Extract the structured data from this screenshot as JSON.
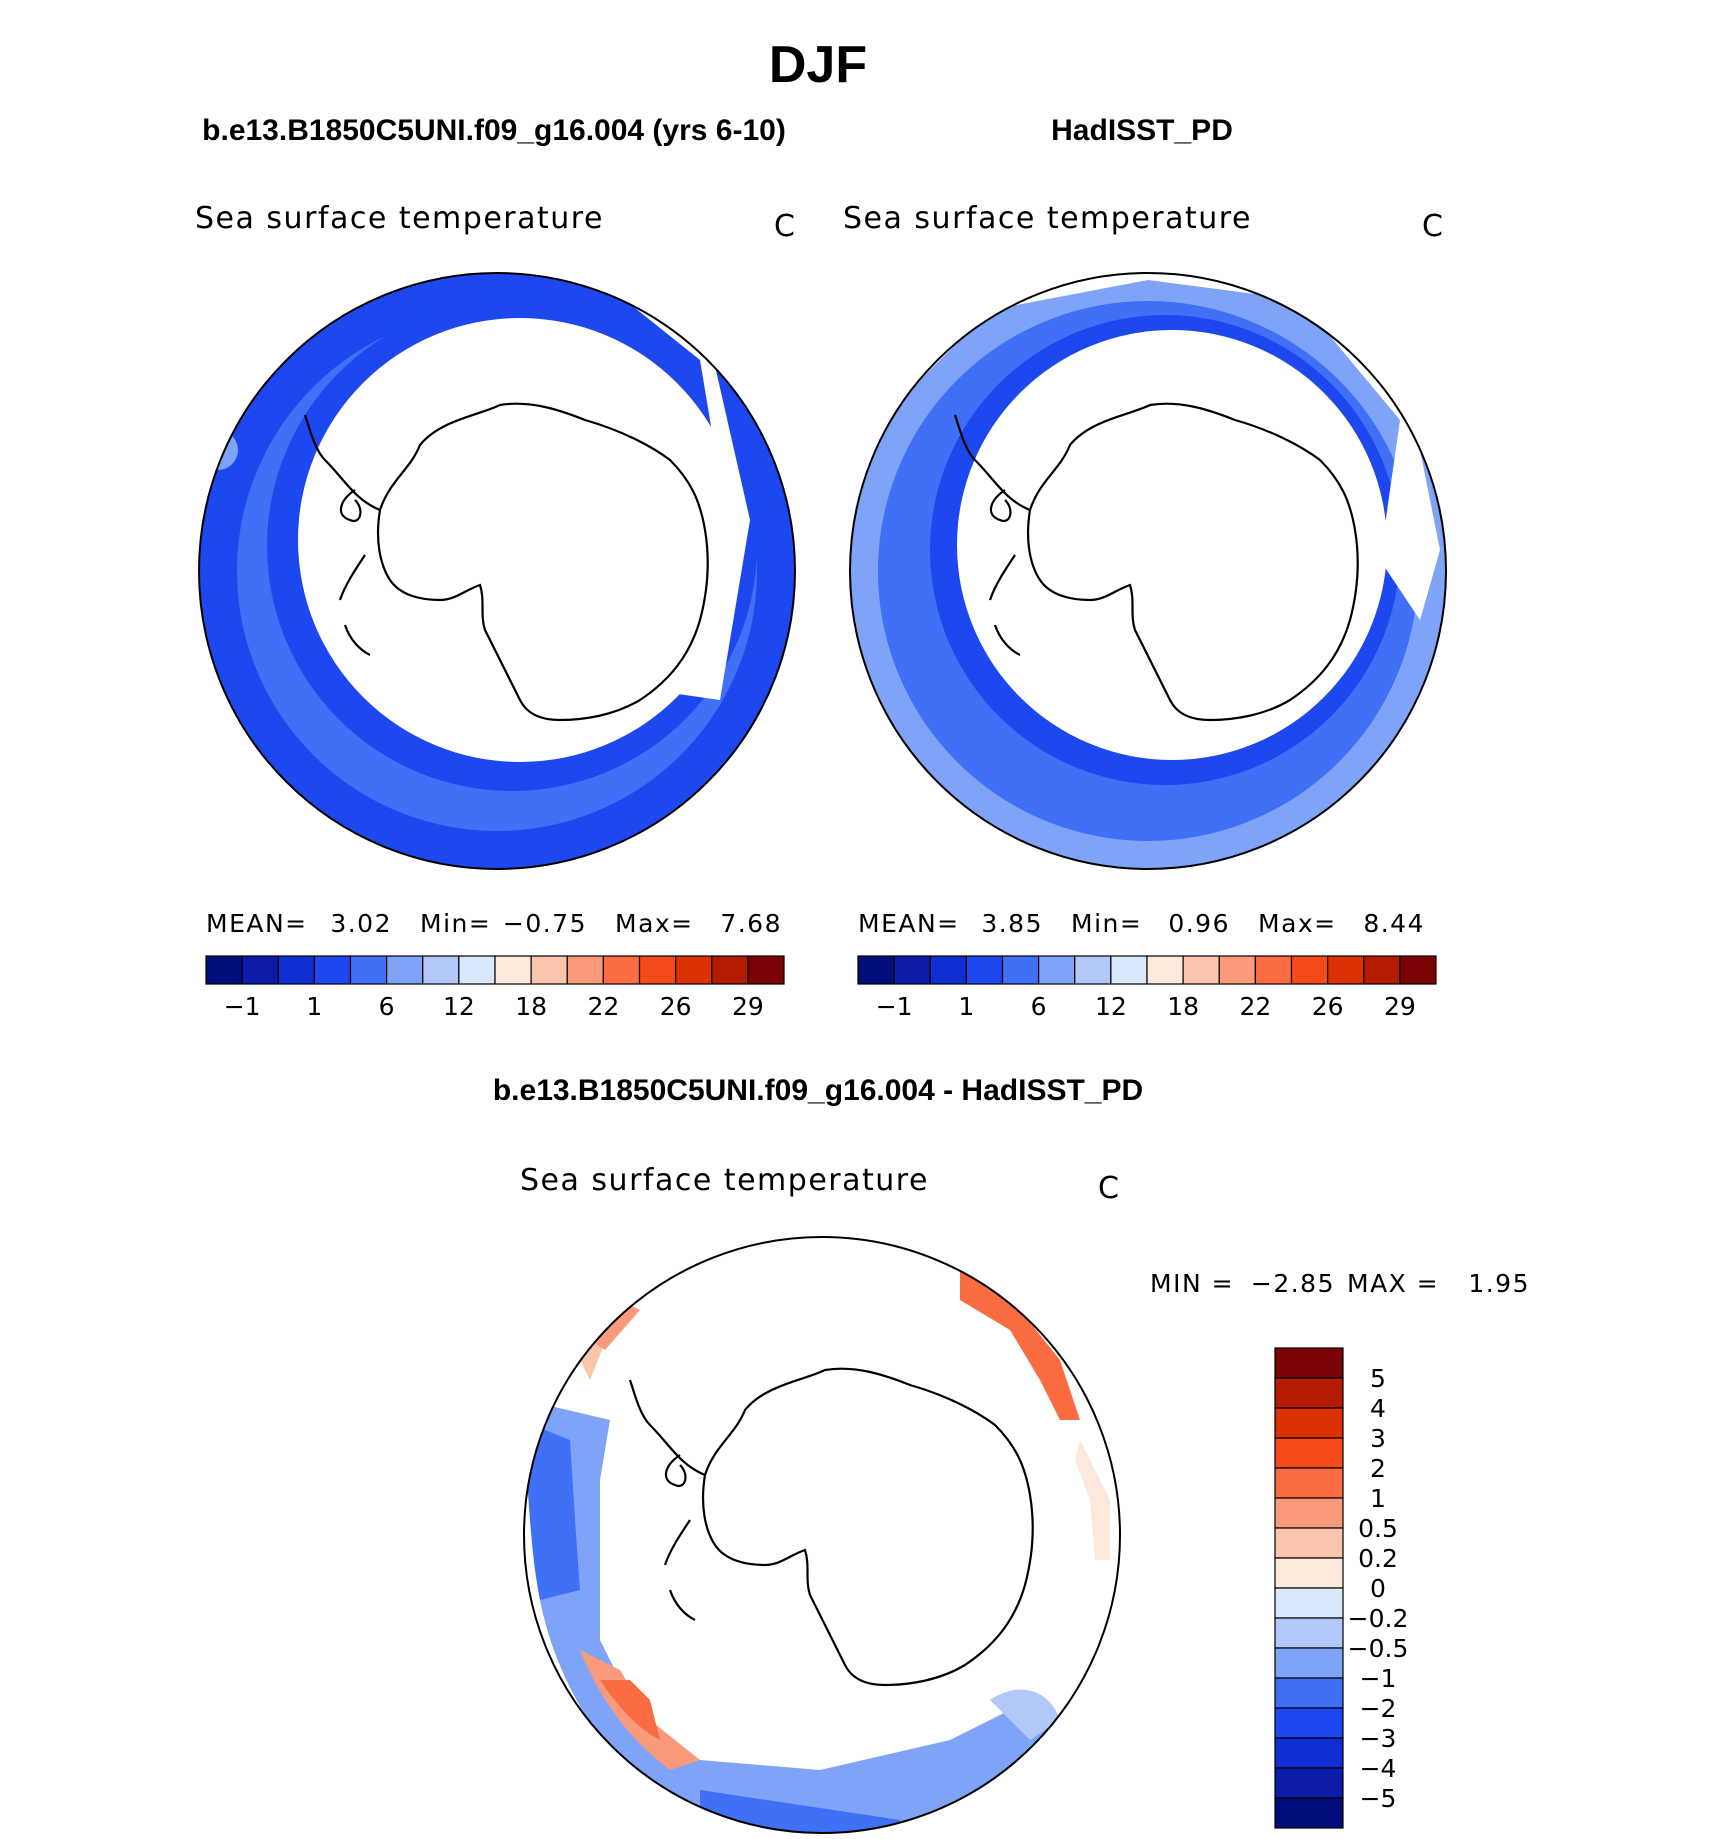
{
  "figure": {
    "season": "DJF"
  },
  "colors": {
    "abs_scale": [
      "#000d7a",
      "#0a1ca8",
      "#0f2fd3",
      "#1d48ef",
      "#3f70f5",
      "#7fa3f7",
      "#b2c8f8",
      "#dae8fb",
      "#fde9dc",
      "#fbc4ad",
      "#f99b7b",
      "#fb6c43",
      "#f64a18",
      "#dc3203",
      "#b31c03",
      "#7c0303"
    ],
    "diff_scale": [
      "#000d7a",
      "#0a1ca8",
      "#0f2fd3",
      "#1d48ef",
      "#3f70f5",
      "#7fa3f7",
      "#b2c8f8",
      "#dae8fb",
      "#fde9dc",
      "#fbc4ad",
      "#f99b7b",
      "#fb6c43",
      "#f64a18",
      "#dc3203",
      "#b31c03",
      "#7c0303"
    ],
    "land": "#ffffff",
    "coast": "#000000"
  },
  "chart_data": [
    {
      "type": "heatmap",
      "title": "b.e13.B1850C5UNI.f09_g16.004 (yrs 6-10)",
      "subtitle": "Sea surface temperature",
      "units": "C",
      "projection": "south polar stereographic",
      "stats": {
        "mean_label": "MEAN=",
        "mean": "3.02",
        "min_label": "Min=",
        "min": "−0.75",
        "max_label": "Max=",
        "max": "7.68"
      },
      "colorbar_ticks": [
        "−1",
        "1",
        "6",
        "12",
        "18",
        "22",
        "26",
        "29"
      ],
      "levels": [
        -1,
        1,
        6,
        12,
        18,
        22,
        26,
        29
      ]
    },
    {
      "type": "heatmap",
      "title": "HadISST_PD",
      "subtitle": "Sea surface temperature",
      "units": "C",
      "projection": "south polar stereographic",
      "stats": {
        "mean_label": "MEAN=",
        "mean": "3.85",
        "min_label": "Min=",
        "min": "0.96",
        "max_label": "Max=",
        "max": "8.44"
      },
      "colorbar_ticks": [
        "−1",
        "1",
        "6",
        "12",
        "18",
        "22",
        "26",
        "29"
      ],
      "levels": [
        -1,
        1,
        6,
        12,
        18,
        22,
        26,
        29
      ]
    },
    {
      "type": "heatmap",
      "title": "b.e13.B1850C5UNI.f09_g16.004 - HadISST_PD",
      "subtitle": "Sea surface temperature",
      "units": "C",
      "projection": "south polar stereographic",
      "stats": {
        "min_label": "MIN =",
        "min": "−2.85",
        "max_label": "MAX =",
        "max": "1.95"
      },
      "colorbar_ticks": [
        "5",
        "4",
        "3",
        "2",
        "1",
        "0.5",
        "0.2",
        "0",
        "−0.2",
        "−0.5",
        "−1",
        "−2",
        "−3",
        "−4",
        "−5"
      ],
      "levels": [
        5,
        4,
        3,
        2,
        1,
        0.5,
        0.2,
        0,
        -0.2,
        -0.5,
        -1,
        -2,
        -3,
        -4,
        -5
      ]
    }
  ]
}
